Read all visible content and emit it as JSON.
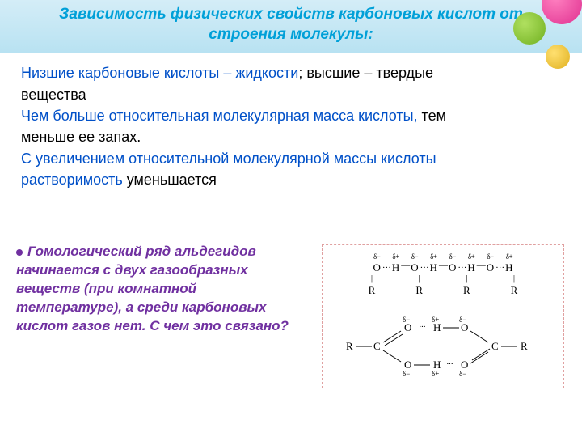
{
  "title": {
    "line1": "Зависимость физических свойств карбоновых кислот от",
    "line2": "строения молекулы:"
  },
  "paragraphs": [
    {
      "spans": [
        {
          "text": "Низшие карбоновые кислоты – жидкости",
          "color": "blue"
        },
        {
          "text": "; высшие – твердые",
          "color": "black"
        }
      ]
    },
    {
      "spans": [
        {
          "text": "вещества",
          "color": "black"
        }
      ]
    },
    {
      "spans": [
        {
          "text": "Чем больше относительная молекулярная масса кислоты, ",
          "color": "blue"
        },
        {
          "text": "тем",
          "color": "black"
        }
      ]
    },
    {
      "spans": [
        {
          "text": "меньше ее запах.",
          "color": "black"
        }
      ]
    },
    {
      "spans": [
        {
          "text": "С увеличением относительной молекулярной массы кислоты",
          "color": "blue"
        }
      ]
    },
    {
      "spans": [
        {
          "text": "растворимость",
          "color": "blue"
        },
        {
          "text": " уменьшается",
          "color": "black"
        }
      ]
    }
  ],
  "question": "Гомологический ряд альдегидов начинается с двух газообразных веществ (при комнатной температуре),  а среди карбоновых кислот газов нет.  С чем это связано?",
  "diagram": {
    "chain_units": [
      {
        "charge": "δ−",
        "atom": "O",
        "sub": "|"
      },
      {
        "dots": "…"
      },
      {
        "charge": "δ+",
        "atom": "H",
        "sub": ""
      },
      {
        "dots": "—"
      },
      {
        "charge": "δ−",
        "atom": "O",
        "sub": "|"
      },
      {
        "dots": "…"
      },
      {
        "charge": "δ+",
        "atom": "H",
        "sub": ""
      },
      {
        "dots": "—"
      },
      {
        "charge": "δ−",
        "atom": "O",
        "sub": "|"
      },
      {
        "dots": "…"
      },
      {
        "charge": "δ+",
        "atom": "H",
        "sub": ""
      },
      {
        "dots": "—"
      },
      {
        "charge": "δ−",
        "atom": "O",
        "sub": "|"
      },
      {
        "dots": "…"
      },
      {
        "charge": "δ+",
        "atom": "H",
        "sub": ""
      }
    ],
    "r_labels": [
      "R",
      "R",
      "R",
      "R"
    ],
    "dimer": {
      "left_r": "R",
      "right_r": "R",
      "delta_minus": "δ−",
      "delta_plus": "δ+",
      "O": "O",
      "H": "H",
      "C": "C"
    }
  },
  "colors": {
    "title": "#00a0d8",
    "blue_text": "#0050c8",
    "black_text": "#000000",
    "purple_text": "#7030a0",
    "diagram_border": "#e0a0a0"
  }
}
